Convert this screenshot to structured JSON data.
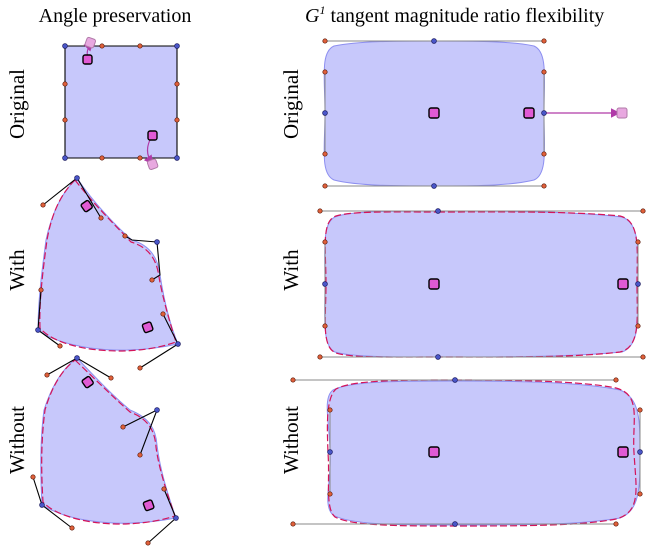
{
  "titles": {
    "left": "Angle preservation",
    "right_prefix": "G",
    "right_superscript": "1",
    "right_suffix": " tangent magnitude ratio flexibility"
  },
  "row_labels": {
    "original": "Original",
    "with": "With",
    "without": "Without"
  },
  "colors": {
    "fill": "#c7c8fb",
    "outline": "#8d8ff0",
    "target_curve": "#d4145a",
    "handle_line": "#000000",
    "guide_line": "#8a8a8a",
    "anchor_point": "#4a56c8",
    "tangent_point": "#e0603a",
    "handle_square": "#e05ad4",
    "drag_arrow": "#b03aa8",
    "ghost_square": "#e8a8e0"
  },
  "icons": {
    "anchor": "blue-dot",
    "tangent": "orange-dot",
    "handle": "magenta-square",
    "drag": "arrow"
  }
}
